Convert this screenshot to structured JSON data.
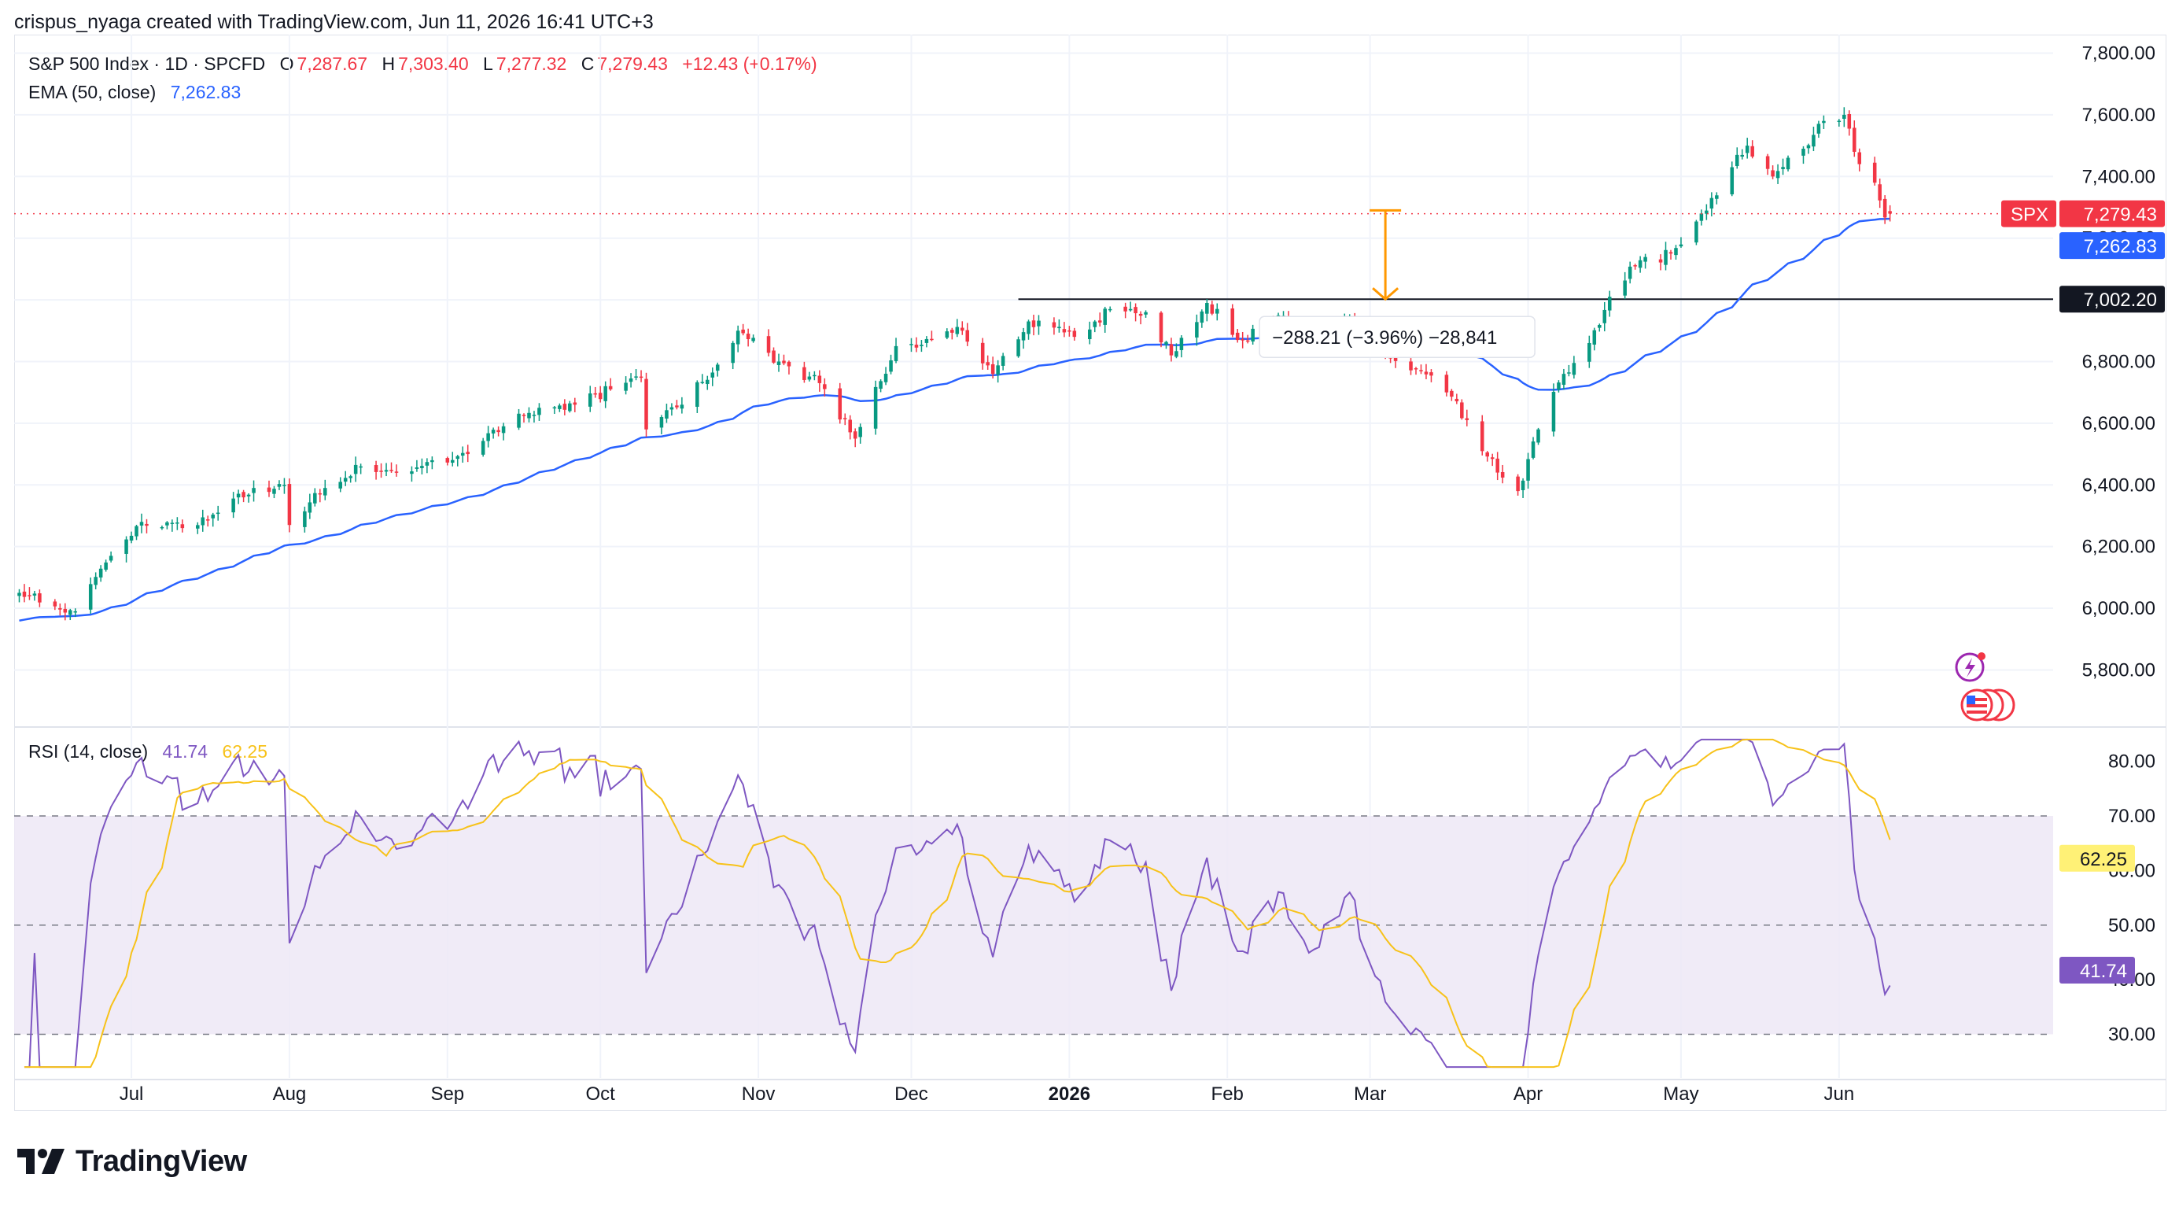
{
  "header": {
    "attribution": "crispus_nyaga created with TradingView.com, Jun 11, 2026 16:41 UTC+3"
  },
  "legend": {
    "symbol": "S&P 500 Index · 1D · SPCFD",
    "o_label": "O",
    "o": "7,287.67",
    "h_label": "H",
    "h": "7,303.40",
    "l_label": "L",
    "l": "7,277.32",
    "c_label": "C",
    "c": "7,279.43",
    "change": "+12.43 (+0.17%)",
    "ema_label": "EMA (50, close)",
    "ema_value": "7,262.83",
    "rsi_label": "RSI (14, close)",
    "rsi_value": "41.74",
    "rsi_ma_value": "62.25"
  },
  "colors": {
    "up": "#089981",
    "down": "#f23645",
    "ema": "#2962ff",
    "rsi": "#7e57c2",
    "rsi_ma": "#f7c21a",
    "band": "#ede7f6"
  },
  "annotation": {
    "text": "−288.21 (−3.96%) −28,841",
    "line_label": "7,002.20"
  },
  "price_tags": {
    "symbol": "SPX",
    "price": "7,279.43",
    "ema": "7,262.83",
    "rsi": "41.74",
    "rsi_ma": "62.25"
  },
  "footer": {
    "logo_text": "TradingView"
  },
  "chart_data": [
    {
      "type": "candlestick",
      "title": "S&P 500 Index · 1D · SPCFD",
      "ylim": [
        5620,
        7860
      ],
      "yticks": [
        "7,800.00",
        "7,600.00",
        "7,400.00",
        "7,200.00",
        "7,000.00",
        "6,800.00",
        "6,600.00",
        "6,400.00",
        "6,200.00",
        "6,000.00",
        "5,800.00"
      ],
      "ytick_values": [
        7800,
        7600,
        7400,
        7200,
        7000,
        6800,
        6600,
        6400,
        6200,
        6000,
        5800
      ],
      "xticks": [
        {
          "label": "Jul",
          "date": "2025-07-01"
        },
        {
          "label": "Aug",
          "date": "2025-08-01"
        },
        {
          "label": "Sep",
          "date": "2025-09-01"
        },
        {
          "label": "Oct",
          "date": "2025-10-01"
        },
        {
          "label": "Nov",
          "date": "2025-11-01"
        },
        {
          "label": "Dec",
          "date": "2025-12-01"
        },
        {
          "label": "2026",
          "date": "2026-01-01"
        },
        {
          "label": "Feb",
          "date": "2026-02-01"
        },
        {
          "label": "Mar",
          "date": "2026-03-01"
        },
        {
          "label": "Apr",
          "date": "2026-04-01"
        },
        {
          "label": "May",
          "date": "2026-05-01"
        },
        {
          "label": "Jun",
          "date": "2026-06-01"
        }
      ],
      "xlim": [
        "2025-06-08",
        "2026-07-13"
      ],
      "close_anchors": [
        [
          "2025-06-09",
          6050
        ],
        [
          "2025-06-20",
          5990
        ],
        [
          "2025-06-27",
          6170
        ],
        [
          "2025-07-03",
          6280
        ],
        [
          "2025-07-11",
          6260
        ],
        [
          "2025-07-18",
          6310
        ],
        [
          "2025-07-25",
          6390
        ],
        [
          "2025-07-31",
          6400
        ],
        [
          "2025-08-01",
          6270
        ],
        [
          "2025-08-08",
          6390
        ],
        [
          "2025-08-15",
          6460
        ],
        [
          "2025-08-22",
          6440
        ],
        [
          "2025-08-29",
          6480
        ],
        [
          "2025-09-05",
          6500
        ],
        [
          "2025-09-12",
          6590
        ],
        [
          "2025-09-19",
          6650
        ],
        [
          "2025-09-26",
          6660
        ],
        [
          "2025-10-03",
          6710
        ],
        [
          "2025-10-09",
          6750
        ],
        [
          "2025-10-10",
          6580
        ],
        [
          "2025-10-17",
          6660
        ],
        [
          "2025-10-24",
          6790
        ],
        [
          "2025-10-28",
          6900
        ],
        [
          "2025-11-05",
          6800
        ],
        [
          "2025-11-13",
          6730
        ],
        [
          "2025-11-20",
          6550
        ],
        [
          "2025-11-28",
          6850
        ],
        [
          "2025-12-05",
          6870
        ],
        [
          "2025-12-11",
          6900
        ],
        [
          "2025-12-17",
          6760
        ],
        [
          "2025-12-24",
          6930
        ],
        [
          "2026-01-02",
          6880
        ],
        [
          "2026-01-09",
          6970
        ],
        [
          "2026-01-16",
          6960
        ],
        [
          "2026-01-21",
          6820
        ],
        [
          "2026-01-28",
          6990
        ],
        [
          "2026-02-04",
          6870
        ],
        [
          "2026-02-11",
          6950
        ],
        [
          "2026-02-18",
          6880
        ],
        [
          "2026-02-25",
          6940
        ],
        [
          "2026-03-04",
          6820
        ],
        [
          "2026-03-11",
          6770
        ],
        [
          "2026-03-16",
          6700
        ],
        [
          "2026-03-20",
          6610
        ],
        [
          "2026-03-26",
          6440
        ],
        [
          "2026-03-30",
          6380
        ],
        [
          "2026-04-03",
          6580
        ],
        [
          "2026-04-08",
          6760
        ],
        [
          "2026-04-13",
          6860
        ],
        [
          "2026-04-17",
          7010
        ],
        [
          "2026-04-22",
          7110
        ],
        [
          "2026-04-29",
          7150
        ],
        [
          "2026-05-05",
          7280
        ],
        [
          "2026-05-11",
          7430
        ],
        [
          "2026-05-14",
          7500
        ],
        [
          "2026-05-19",
          7400
        ],
        [
          "2026-05-25",
          7490
        ],
        [
          "2026-05-29",
          7580
        ],
        [
          "2026-06-02",
          7600
        ],
        [
          "2026-06-04",
          7480
        ],
        [
          "2026-06-08",
          7380
        ],
        [
          "2026-06-10",
          7267
        ],
        [
          "2026-06-11",
          7279.43
        ]
      ],
      "last_ohlc": {
        "date": "2026-06-11",
        "open": 7287.67,
        "high": 7303.4,
        "low": 7277.32,
        "close": 7279.43
      },
      "ema": {
        "name": "EMA (50, close)",
        "period": 50,
        "last": 7262.83
      },
      "horizontal_line": {
        "value": 7002.2,
        "from": "2025-12-22"
      },
      "measure": {
        "date": "2026-03-04",
        "from": 7290,
        "to": 7002.2,
        "text": "−288.21 (−3.96%) −28,841"
      }
    },
    {
      "type": "line",
      "title": "RSI (14, close)",
      "ylim": [
        22,
        86
      ],
      "yticks": [
        "80.00",
        "70.00",
        "60.00",
        "50.00",
        "40.00",
        "30.00"
      ],
      "ytick_values": [
        80,
        70,
        60,
        50,
        40,
        30
      ],
      "bands": [
        30,
        70
      ],
      "midline": 50,
      "series": [
        {
          "name": "RSI (14, close)",
          "last": 41.74
        },
        {
          "name": "",
          "last": 62.25
        }
      ]
    }
  ]
}
